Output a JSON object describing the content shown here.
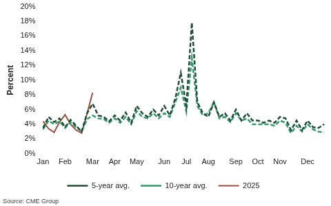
{
  "chart_data": {
    "type": "line",
    "y_label": "Percent",
    "source": "Source: CME Group",
    "categories": [
      "Jan",
      null,
      null,
      null,
      "Feb",
      null,
      null,
      null,
      null,
      "Mar",
      null,
      null,
      null,
      "Apr",
      null,
      null,
      null,
      "May",
      null,
      null,
      null,
      null,
      "Jun",
      null,
      null,
      null,
      "Jul",
      null,
      null,
      null,
      "Aug",
      null,
      null,
      null,
      null,
      "Sep",
      null,
      null,
      null,
      "Oct",
      null,
      null,
      null,
      "Nov",
      null,
      null,
      null,
      null,
      "Dec",
      null,
      null,
      null
    ],
    "series": [
      {
        "name": "5-year avg.",
        "color": "#1f4a36",
        "line_style": "dashed",
        "values": [
          3.5,
          5.0,
          4.3,
          4.8,
          3.6,
          4.6,
          3.8,
          3.0,
          5.5,
          6.8,
          5.2,
          5.0,
          4.4,
          5.2,
          4.5,
          5.6,
          4.2,
          6.5,
          5.5,
          5.0,
          6.0,
          5.2,
          6.5,
          5.2,
          7.5,
          11.0,
          6.5,
          17.8,
          7.0,
          5.5,
          5.0,
          7.0,
          5.0,
          5.5,
          4.5,
          6.0,
          4.5,
          5.5,
          4.5,
          4.5,
          4.2,
          4.5,
          4.2,
          5.0,
          4.8,
          3.2,
          4.5,
          3.2,
          4.5,
          3.6,
          3.5,
          4.0
        ]
      },
      {
        "name": "10-year avg.",
        "color": "#2f9a6c",
        "line_style": "dashed",
        "values": [
          3.3,
          4.5,
          4.0,
          4.4,
          3.5,
          4.3,
          3.6,
          3.0,
          4.7,
          5.2,
          4.8,
          4.7,
          4.2,
          4.8,
          4.2,
          5.0,
          4.0,
          5.8,
          5.0,
          4.8,
          5.5,
          4.8,
          5.5,
          5.0,
          7.0,
          9.0,
          5.7,
          13.0,
          6.5,
          5.2,
          5.5,
          7.0,
          4.8,
          5.0,
          4.3,
          5.5,
          4.5,
          4.8,
          4.0,
          4.0,
          4.0,
          4.0,
          3.8,
          4.5,
          4.2,
          2.8,
          3.8,
          3.0,
          4.0,
          3.3,
          3.0,
          2.9
        ]
      },
      {
        "name": "2025",
        "color": "#9c4e3c",
        "line_style": "solid",
        "values": [
          4.4,
          3.4,
          2.9,
          4.3,
          5.3,
          4.0,
          3.2,
          2.8,
          5.5,
          8.3,
          null,
          null,
          null,
          null,
          null,
          null,
          null,
          null,
          null,
          null,
          null,
          null,
          null,
          null,
          null,
          null,
          null,
          null,
          null,
          null,
          null,
          null,
          null,
          null,
          null,
          null,
          null,
          null,
          null,
          null,
          null,
          null,
          null,
          null,
          null,
          null,
          null,
          null,
          null,
          null,
          null,
          null
        ]
      }
    ],
    "ylim": [
      0,
      20
    ],
    "yticks": [
      {
        "value": 0,
        "label": "0%"
      },
      {
        "value": 2,
        "label": "2%"
      },
      {
        "value": 4,
        "label": "4%"
      },
      {
        "value": 6,
        "label": "6%"
      },
      {
        "value": 8,
        "label": "8%"
      },
      {
        "value": 10,
        "label": "10%"
      },
      {
        "value": 12,
        "label": "12%"
      },
      {
        "value": 14,
        "label": "14%"
      },
      {
        "value": 16,
        "label": "16%"
      },
      {
        "value": 18,
        "label": "18%"
      },
      {
        "value": 20,
        "label": "20%"
      }
    ],
    "grid": false,
    "legend": "bottom"
  }
}
